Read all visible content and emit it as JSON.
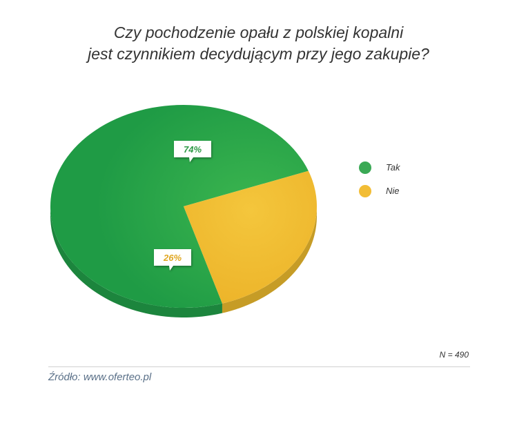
{
  "chart_data": {
    "type": "pie",
    "title_lines": [
      "Czy pochodzenie opału z polskiej kopalni",
      "jest czynnikiem decydującym przy jego zakupie?"
    ],
    "categories": [
      "Tak",
      "Nie"
    ],
    "values": [
      74,
      26
    ],
    "data_labels": [
      "74%",
      "26%"
    ],
    "colors": [
      "#22a24a",
      "#f1be2e"
    ],
    "legend_placement": "right"
  },
  "sample_size": "N = 490",
  "source": "Źródło: www.oferteo.pl"
}
